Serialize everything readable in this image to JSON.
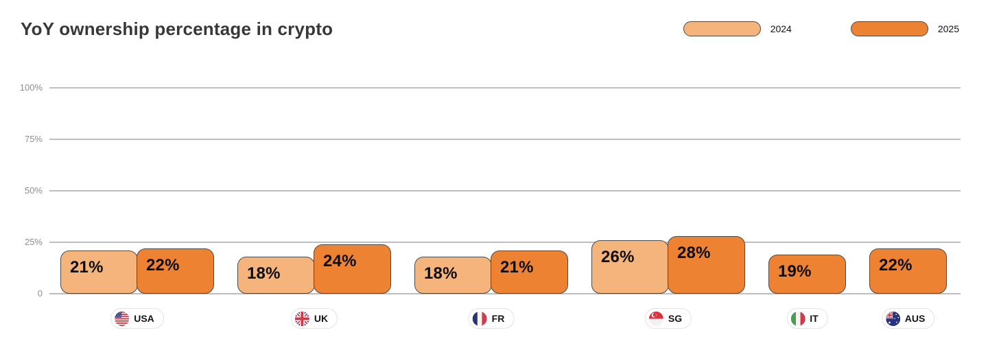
{
  "chart_data": {
    "type": "bar",
    "title": "YoY ownership percentage in crypto",
    "value_suffix": "%",
    "ylim": [
      0,
      100
    ],
    "grid": true,
    "legend_position": "top-right",
    "yticks": [
      {
        "value": 100,
        "label": "100%"
      },
      {
        "value": 75,
        "label": "75%"
      },
      {
        "value": 50,
        "label": "50%"
      },
      {
        "value": 25,
        "label": "25%"
      },
      {
        "value": 0,
        "label": "0"
      }
    ],
    "categories": [
      {
        "label": "USA",
        "flag": "usa-flag"
      },
      {
        "label": "UK",
        "flag": "uk-flag"
      },
      {
        "label": "FR",
        "flag": "france-flag"
      },
      {
        "label": "SG",
        "flag": "singapore-flag"
      },
      {
        "label": "IT",
        "flag": "italy-flag"
      },
      {
        "label": "AUS",
        "flag": "australia-flag"
      }
    ],
    "series": [
      {
        "name": "2024",
        "color": "#F4B47C",
        "values": [
          21,
          18,
          18,
          26,
          null,
          null
        ]
      },
      {
        "name": "2025",
        "color": "#EE8233",
        "values": [
          22,
          24,
          21,
          28,
          19,
          22
        ]
      }
    ],
    "colors": {
      "bar_border": "#4A4A4A",
      "gridline": "#BDBDBD",
      "tick_label": "#8E8E8E",
      "title_text": "#383838"
    }
  }
}
